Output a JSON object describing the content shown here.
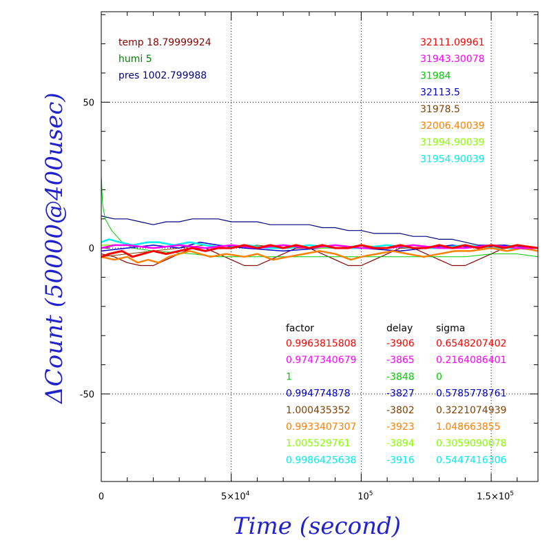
{
  "chart_data": {
    "type": "line",
    "xlabel": "Time (second)",
    "ylabel": "ΔCount (50000@400usec)",
    "xlim": [
      0,
      168000
    ],
    "ylim": [
      -80,
      81
    ],
    "grid": true,
    "x_ticks": [
      {
        "value": 0,
        "label": "0",
        "sup": ""
      },
      {
        "value": 50000,
        "label": "5×10",
        "sup": "4"
      },
      {
        "value": 100000,
        "label": "10",
        "sup": "5"
      },
      {
        "value": 150000,
        "label": "1.5×10",
        "sup": "5"
      }
    ],
    "y_ticks": [
      {
        "value": 50,
        "label": "50"
      },
      {
        "value": 0,
        "label": "0"
      },
      {
        "value": -50,
        "label": "-50"
      }
    ],
    "environment": [
      {
        "text": "temp 18.79999924",
        "color": "#8b0000"
      },
      {
        "text": "humi 5",
        "color": "#008000"
      },
      {
        "text": "pres 1002.799988",
        "color": "#000080"
      }
    ],
    "table_headers": [
      "factor",
      "delay",
      "sigma"
    ],
    "series": [
      {
        "count": "32111.09961",
        "factor": "0.9963815808",
        "delay": "-3906",
        "sigma": "0.6548207402",
        "color": "#ff0000",
        "points": [
          [
            0,
            -3
          ],
          [
            3000,
            -2
          ],
          [
            8000,
            -1
          ],
          [
            12000,
            -3
          ],
          [
            16000,
            -2
          ],
          [
            20000,
            -1
          ],
          [
            25000,
            -2
          ],
          [
            30000,
            -1
          ],
          [
            35000,
            0
          ],
          [
            40000,
            -1
          ],
          [
            45000,
            0
          ],
          [
            50000,
            0
          ],
          [
            55000,
            1
          ],
          [
            60000,
            0
          ],
          [
            65000,
            1
          ],
          [
            70000,
            0
          ],
          [
            75000,
            1
          ],
          [
            80000,
            0
          ],
          [
            85000,
            1
          ],
          [
            90000,
            0
          ],
          [
            95000,
            0
          ],
          [
            100000,
            1
          ],
          [
            105000,
            0
          ],
          [
            110000,
            0
          ],
          [
            115000,
            1
          ],
          [
            120000,
            0
          ],
          [
            125000,
            0
          ],
          [
            130000,
            1
          ],
          [
            135000,
            0
          ],
          [
            140000,
            1
          ],
          [
            145000,
            0
          ],
          [
            150000,
            1
          ],
          [
            155000,
            0
          ],
          [
            160000,
            1
          ],
          [
            168000,
            0
          ]
        ]
      },
      {
        "count": "31943.30078",
        "factor": "0.9747340679",
        "delay": "-3865",
        "sigma": "0.2164086401",
        "color": "#ff00ff",
        "points": [
          [
            0,
            0
          ],
          [
            5000,
            1
          ],
          [
            10000,
            1
          ],
          [
            20000,
            0
          ],
          [
            30000,
            1
          ],
          [
            40000,
            0
          ],
          [
            50000,
            1
          ],
          [
            60000,
            0
          ],
          [
            70000,
            1
          ],
          [
            80000,
            0
          ],
          [
            90000,
            1
          ],
          [
            100000,
            0
          ],
          [
            110000,
            0
          ],
          [
            120000,
            1
          ],
          [
            130000,
            0
          ],
          [
            140000,
            0
          ],
          [
            150000,
            1
          ],
          [
            160000,
            0
          ],
          [
            168000,
            0
          ]
        ]
      },
      {
        "count": "31984",
        "factor": "1",
        "delay": "-3848",
        "sigma": "0",
        "color": "#00cc00",
        "points": [
          [
            0,
            25
          ],
          [
            500,
            15
          ],
          [
            1500,
            10
          ],
          [
            4000,
            6
          ],
          [
            8000,
            2
          ],
          [
            12000,
            0
          ],
          [
            20000,
            -1
          ],
          [
            35000,
            -2
          ],
          [
            45000,
            -3
          ],
          [
            60000,
            -3
          ],
          [
            100000,
            -3
          ],
          [
            140000,
            -3
          ],
          [
            150000,
            -2
          ],
          [
            160000,
            -2
          ],
          [
            168000,
            -3
          ]
        ]
      },
      {
        "count": "32113.5",
        "factor": "0.994774878",
        "delay": "-3827",
        "sigma": "0.5785778761",
        "color": "#0000cc",
        "points": [
          [
            0,
            -1
          ],
          [
            10000,
            0
          ],
          [
            20000,
            1
          ],
          [
            30000,
            0
          ],
          [
            38000,
            2
          ],
          [
            45000,
            1
          ],
          [
            55000,
            0
          ],
          [
            70000,
            -1
          ],
          [
            85000,
            0
          ],
          [
            100000,
            0
          ],
          [
            115000,
            -1
          ],
          [
            125000,
            0
          ],
          [
            135000,
            1
          ],
          [
            145000,
            0
          ],
          [
            155000,
            1
          ],
          [
            168000,
            0
          ]
        ]
      },
      {
        "count": "31978.5",
        "factor": "1.000435352",
        "delay": "-3802",
        "sigma": "0.3221074939",
        "color": "#804000",
        "points": [
          [
            0,
            -3
          ],
          [
            10000,
            -2
          ],
          [
            20000,
            -1
          ],
          [
            30000,
            0
          ],
          [
            40000,
            1
          ],
          [
            50000,
            0
          ],
          [
            60000,
            1
          ],
          [
            70000,
            0
          ],
          [
            80000,
            1
          ],
          [
            90000,
            0
          ],
          [
            100000,
            1
          ],
          [
            110000,
            0
          ],
          [
            120000,
            1
          ],
          [
            130000,
            0
          ],
          [
            140000,
            1
          ],
          [
            150000,
            0
          ],
          [
            160000,
            1
          ],
          [
            168000,
            -1
          ]
        ]
      },
      {
        "count": "32006.40039",
        "factor": "0.9933407307",
        "delay": "-3923",
        "sigma": "1.048663855",
        "color": "#ff8000",
        "points": [
          [
            0,
            -3
          ],
          [
            5000,
            -4
          ],
          [
            10000,
            -3
          ],
          [
            14000,
            -5
          ],
          [
            18000,
            -4
          ],
          [
            22000,
            -5
          ],
          [
            26000,
            -3
          ],
          [
            30000,
            -2
          ],
          [
            34000,
            -1
          ],
          [
            38000,
            -2
          ],
          [
            42000,
            -3
          ],
          [
            48000,
            -2
          ],
          [
            55000,
            -3
          ],
          [
            60000,
            -2
          ],
          [
            66000,
            -4
          ],
          [
            72000,
            -3
          ],
          [
            78000,
            -2
          ],
          [
            84000,
            -1
          ],
          [
            90000,
            -2
          ],
          [
            96000,
            -4
          ],
          [
            100000,
            -3
          ],
          [
            106000,
            -2
          ],
          [
            112000,
            -1
          ],
          [
            118000,
            -2
          ],
          [
            124000,
            -3
          ],
          [
            130000,
            -2
          ],
          [
            136000,
            -1
          ],
          [
            142000,
            -1
          ],
          [
            150000,
            0
          ],
          [
            156000,
            -1
          ],
          [
            162000,
            0
          ],
          [
            168000,
            -1
          ]
        ]
      },
      {
        "count": "31994.90039",
        "factor": "1.005529761",
        "delay": "-3894",
        "sigma": "0.3059090078",
        "color": "#88ff00",
        "points": [
          [
            0,
            1
          ],
          [
            10000,
            1
          ],
          [
            20000,
            0
          ],
          [
            30000,
            1
          ],
          [
            40000,
            0
          ],
          [
            50000,
            1
          ],
          [
            60000,
            0
          ],
          [
            70000,
            1
          ],
          [
            80000,
            0
          ],
          [
            90000,
            0
          ],
          [
            100000,
            1
          ],
          [
            110000,
            0
          ],
          [
            120000,
            1
          ],
          [
            130000,
            0
          ],
          [
            140000,
            1
          ],
          [
            150000,
            0
          ],
          [
            160000,
            1
          ],
          [
            168000,
            0
          ]
        ]
      },
      {
        "count": "31954.90039",
        "factor": "0.9986425638",
        "delay": "-3916",
        "sigma": "0.5447416306",
        "color": "#00eeee",
        "points": [
          [
            0,
            2
          ],
          [
            3000,
            3
          ],
          [
            7000,
            2
          ],
          [
            12000,
            1
          ],
          [
            18000,
            2
          ],
          [
            22000,
            2
          ],
          [
            28000,
            1
          ],
          [
            34000,
            2
          ],
          [
            40000,
            1
          ],
          [
            48000,
            0
          ],
          [
            56000,
            1
          ],
          [
            64000,
            0
          ],
          [
            72000,
            0
          ],
          [
            80000,
            1
          ],
          [
            90000,
            0
          ],
          [
            100000,
            0
          ],
          [
            110000,
            1
          ],
          [
            120000,
            0
          ],
          [
            130000,
            0
          ],
          [
            140000,
            1
          ],
          [
            150000,
            0
          ],
          [
            160000,
            0
          ],
          [
            168000,
            0
          ]
        ]
      }
    ],
    "extra_lines": [
      {
        "name": "temp",
        "color": "#8b0000",
        "points": [
          [
            0,
            -2
          ],
          [
            5000,
            -3
          ],
          [
            10000,
            -5
          ],
          [
            15000,
            -6
          ],
          [
            20000,
            -6
          ],
          [
            25000,
            -4
          ],
          [
            30000,
            -2
          ],
          [
            35000,
            0
          ],
          [
            40000,
            0
          ],
          [
            45000,
            -2
          ],
          [
            50000,
            -4
          ],
          [
            55000,
            -6
          ],
          [
            60000,
            -6
          ],
          [
            65000,
            -4
          ],
          [
            70000,
            -2
          ],
          [
            75000,
            0
          ],
          [
            80000,
            0
          ],
          [
            85000,
            -2
          ],
          [
            90000,
            -4
          ],
          [
            95000,
            -6
          ],
          [
            100000,
            -6
          ],
          [
            105000,
            -4
          ],
          [
            110000,
            -2
          ],
          [
            115000,
            0
          ],
          [
            120000,
            0
          ],
          [
            125000,
            -2
          ],
          [
            130000,
            -4
          ],
          [
            135000,
            -6
          ],
          [
            140000,
            -6
          ],
          [
            145000,
            -4
          ],
          [
            150000,
            -2
          ],
          [
            155000,
            0
          ],
          [
            160000,
            0
          ],
          [
            168000,
            -1
          ]
        ]
      },
      {
        "name": "pres",
        "color": "#000080",
        "points": [
          [
            0,
            11
          ],
          [
            5000,
            10
          ],
          [
            10000,
            10
          ],
          [
            15000,
            9
          ],
          [
            20000,
            8
          ],
          [
            25000,
            9
          ],
          [
            30000,
            9
          ],
          [
            35000,
            10
          ],
          [
            40000,
            10
          ],
          [
            45000,
            10
          ],
          [
            50000,
            9
          ],
          [
            55000,
            9
          ],
          [
            60000,
            9
          ],
          [
            65000,
            8
          ],
          [
            70000,
            8
          ],
          [
            75000,
            8
          ],
          [
            80000,
            8
          ],
          [
            85000,
            7
          ],
          [
            90000,
            7
          ],
          [
            95000,
            6
          ],
          [
            100000,
            6
          ],
          [
            105000,
            5
          ],
          [
            110000,
            5
          ],
          [
            115000,
            5
          ],
          [
            120000,
            4
          ],
          [
            125000,
            4
          ],
          [
            130000,
            3
          ],
          [
            135000,
            3
          ],
          [
            140000,
            2
          ],
          [
            145000,
            1
          ],
          [
            150000,
            1
          ],
          [
            155000,
            1
          ],
          [
            160000,
            0
          ],
          [
            168000,
            0
          ]
        ]
      }
    ]
  }
}
